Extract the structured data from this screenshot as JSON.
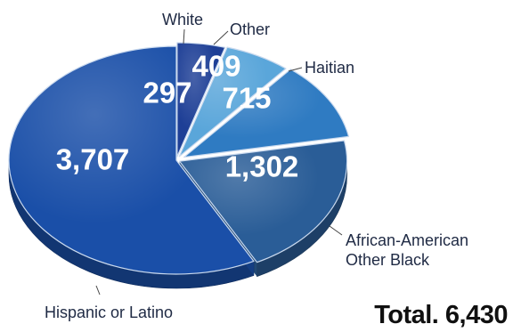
{
  "chart_data": {
    "type": "pie",
    "style": "3d",
    "title": "",
    "total_label": "Total. 6,430",
    "slices": [
      {
        "category": "White",
        "value": 297,
        "label": "297",
        "color": "#1e3f96"
      },
      {
        "category": "Other",
        "value": 409,
        "label": "409",
        "color": "#5aa6da"
      },
      {
        "category": "Haitian",
        "value": 715,
        "label": "715",
        "color": "#2f7bc2"
      },
      {
        "category": "African-American Other Black",
        "category_lines": [
          "African-American",
          "Other Black"
        ],
        "value": 1302,
        "label": "1,302",
        "color": "#2a5d97"
      },
      {
        "category": "Hispanic or Latino",
        "value": 3707,
        "label": "3,707",
        "color": "#1a4fa8"
      }
    ]
  }
}
